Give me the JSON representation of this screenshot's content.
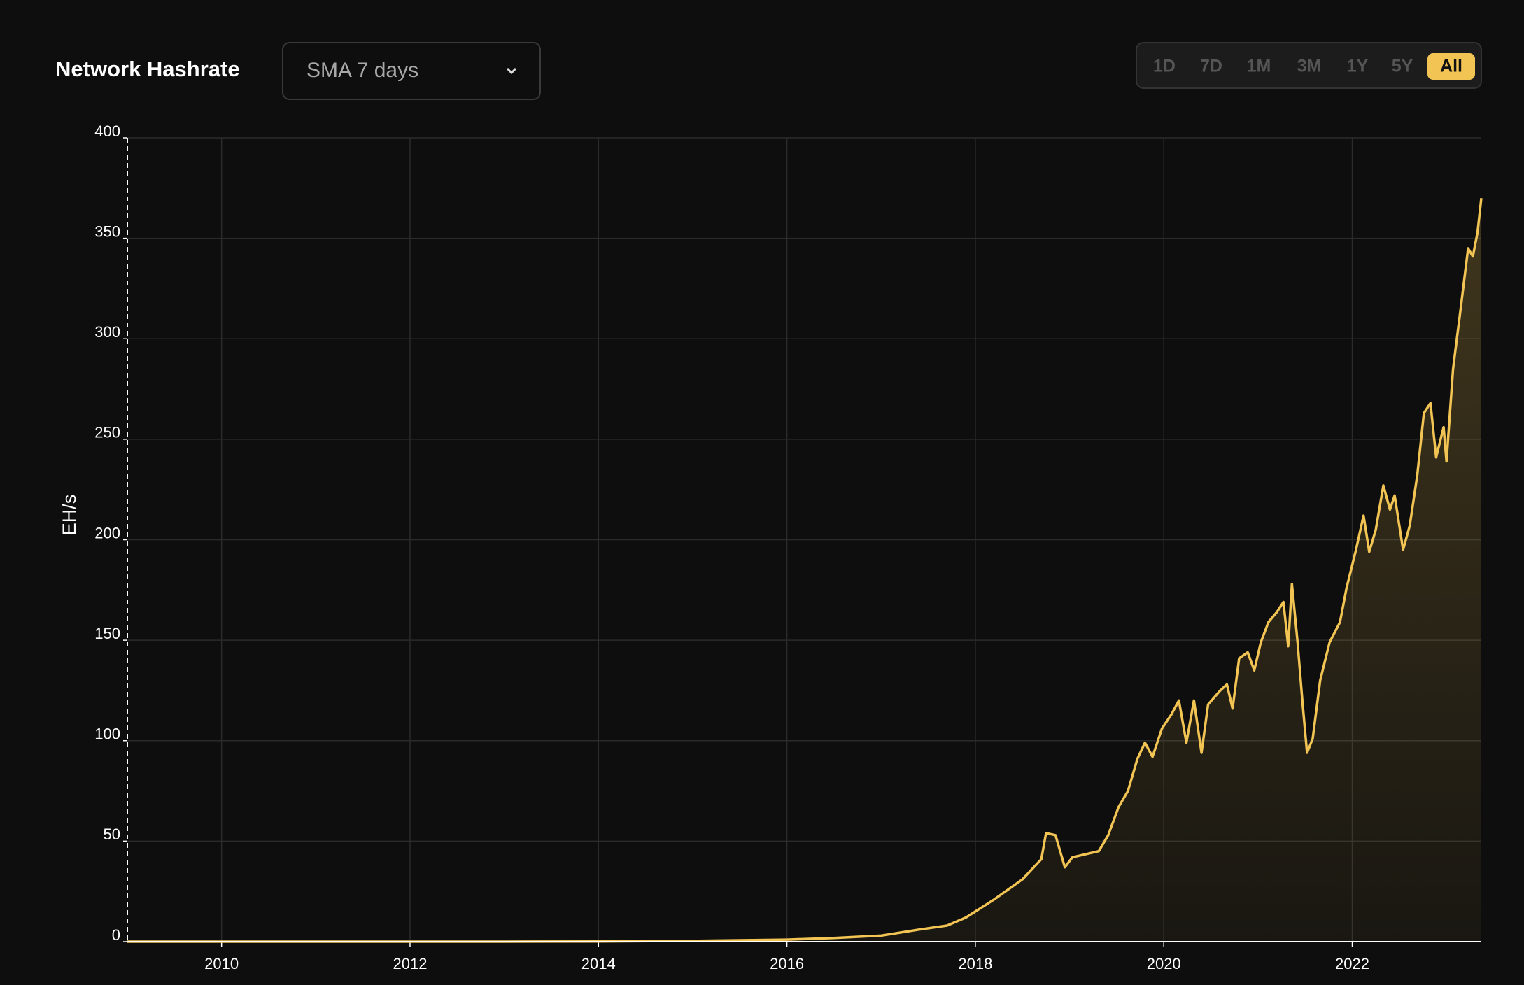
{
  "chart_data": {
    "type": "line",
    "title": "Network Hashrate",
    "y_label": "EH/s",
    "controls": {
      "dropdown": "SMA 7 days",
      "ranges": [
        "1D",
        "7D",
        "1M",
        "3M",
        "1Y",
        "5Y",
        "All"
      ],
      "active_range": 6
    },
    "x": [
      2009.0,
      2011.0,
      2013.0,
      2014.0,
      2015.0,
      2016.0,
      2016.5,
      2017.0,
      2017.4,
      2017.7,
      2017.9,
      2018.2,
      2018.5,
      2018.7,
      2018.75,
      2018.85,
      2018.95,
      2019.03,
      2019.31,
      2019.41,
      2019.52,
      2019.62,
      2019.72,
      2019.8,
      2019.88,
      2019.98,
      2020.08,
      2020.16,
      2020.24,
      2020.32,
      2020.4,
      2020.47,
      2020.6,
      2020.67,
      2020.73,
      2020.8,
      2020.89,
      2020.96,
      2021.03,
      2021.11,
      2021.2,
      2021.27,
      2021.32,
      2021.36,
      2021.42,
      2021.47,
      2021.52,
      2021.58,
      2021.66,
      2021.76,
      2021.87,
      2021.94,
      2022.04,
      2022.12,
      2022.18,
      2022.25,
      2022.33,
      2022.4,
      2022.45,
      2022.54,
      2022.61,
      2022.69,
      2022.76,
      2022.83,
      2022.89,
      2022.97,
      2023.0,
      2023.07,
      2023.14,
      2023.23,
      2023.28,
      2023.33,
      2023.37
    ],
    "series": [
      {
        "name": "Network Hashrate",
        "color": "#f2c453",
        "values": [
          0,
          0,
          0.01,
          0.1,
          0.4,
          1.0,
          1.8,
          3,
          6,
          8,
          12,
          21,
          31,
          41,
          54,
          53,
          37,
          42,
          45,
          53,
          67,
          75,
          91,
          99,
          92,
          106,
          113,
          120,
          99,
          120,
          94,
          118,
          125,
          128,
          116,
          141,
          144,
          135,
          149,
          159,
          164,
          169,
          147,
          178,
          149,
          120,
          94,
          101,
          130,
          149,
          159,
          176,
          195,
          212,
          194,
          205,
          227,
          215,
          222,
          195,
          207,
          232,
          263,
          268,
          241,
          256,
          239,
          285,
          311,
          345,
          341,
          353,
          370
        ]
      }
    ],
    "xlim": [
      2009.0,
      2023.37
    ],
    "xticks": [
      2010,
      2012,
      2014,
      2016,
      2018,
      2020,
      2022
    ],
    "ylim": [
      0,
      400
    ],
    "yticks": [
      0,
      50,
      100,
      150,
      200,
      250,
      300,
      350,
      400
    ],
    "grid": true
  }
}
